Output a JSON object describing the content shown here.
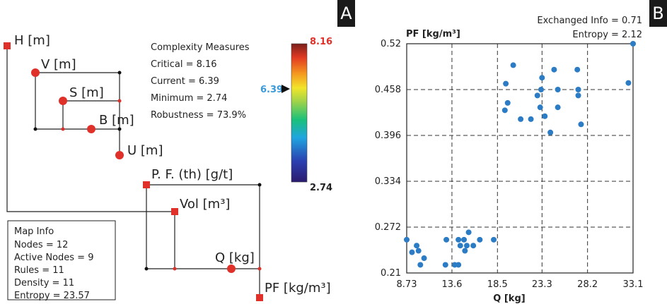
{
  "panels": {
    "a_label": "A",
    "b_label": "B"
  },
  "map_nodes": {
    "h": "H [m]",
    "v": "V [m]",
    "s": "S [m]",
    "b": "B [m]",
    "u": "U [m]",
    "pf_th": "P. F. (th) [g/t]",
    "vol": "Vol [m³]",
    "q": "Q [kg]",
    "pf": "PF [kg/m³]"
  },
  "complexity": {
    "title": "Complexity Measures",
    "critical": "Critical = 8.16",
    "current": "Current = 6.39",
    "minimum": "Minimum = 2.74",
    "robustness": "Robustness = 73.9%",
    "critical_color": "#e0302a",
    "current_color": "#3a9ad9"
  },
  "color_scale": {
    "max_label": "8.16",
    "min_label": "2.74",
    "current_label": "6.39",
    "max": 8.16,
    "min": 2.74,
    "current": 6.39,
    "max_color": "#e0302a",
    "current_color": "#3a9ad9"
  },
  "map_info": {
    "title": "Map Info",
    "nodes": "Nodes = 12",
    "active_nodes": "Active Nodes = 9",
    "rules": "Rules = 11",
    "density": "Density = 11",
    "entropy": "Entropy = 23.57"
  },
  "scatter_info": {
    "exchanged": "Exchanged Info = 0.71",
    "entropy": "Entropy = 2.12"
  },
  "chart_data": {
    "type": "scatter",
    "xlabel": "Q [kg]",
    "ylabel": "PF [kg/m³]",
    "xlim": [
      8.73,
      33.1
    ],
    "ylim": [
      0.21,
      0.52
    ],
    "xticks": [
      "8.73",
      "13.6",
      "18.5",
      "23.3",
      "28.2",
      "33.1"
    ],
    "yticks": [
      "0.52",
      "0.458",
      "0.396",
      "0.334",
      "0.272",
      "0.21"
    ],
    "grid": true,
    "point_color": "#2b7cc4",
    "series": [
      {
        "points": [
          [
            8.73,
            0.255
          ],
          [
            9.8,
            0.247
          ],
          [
            10.0,
            0.24
          ],
          [
            9.3,
            0.238
          ],
          [
            10.2,
            0.221
          ],
          [
            10.6,
            0.23
          ],
          [
            13.0,
            0.255
          ],
          [
            12.9,
            0.221
          ],
          [
            13.9,
            0.221
          ],
          [
            14.3,
            0.255
          ],
          [
            14.3,
            0.221
          ],
          [
            14.5,
            0.247
          ],
          [
            14.9,
            0.255
          ],
          [
            15.0,
            0.24
          ],
          [
            15.2,
            0.247
          ],
          [
            15.4,
            0.265
          ],
          [
            15.9,
            0.247
          ],
          [
            16.6,
            0.255
          ],
          [
            18.1,
            0.255
          ],
          [
            33.1,
            0.52
          ],
          [
            32.6,
            0.467
          ],
          [
            19.4,
            0.466
          ],
          [
            19.6,
            0.44
          ],
          [
            19.3,
            0.43
          ],
          [
            20.2,
            0.491
          ],
          [
            21.0,
            0.418
          ],
          [
            22.1,
            0.418
          ],
          [
            22.8,
            0.45
          ],
          [
            23.1,
            0.434
          ],
          [
            23.2,
            0.458
          ],
          [
            23.3,
            0.474
          ],
          [
            23.6,
            0.422
          ],
          [
            24.2,
            0.4
          ],
          [
            24.6,
            0.485
          ],
          [
            25.0,
            0.434
          ],
          [
            25.0,
            0.458
          ],
          [
            27.1,
            0.485
          ],
          [
            27.2,
            0.458
          ],
          [
            27.2,
            0.45
          ],
          [
            27.5,
            0.411
          ]
        ]
      }
    ]
  }
}
